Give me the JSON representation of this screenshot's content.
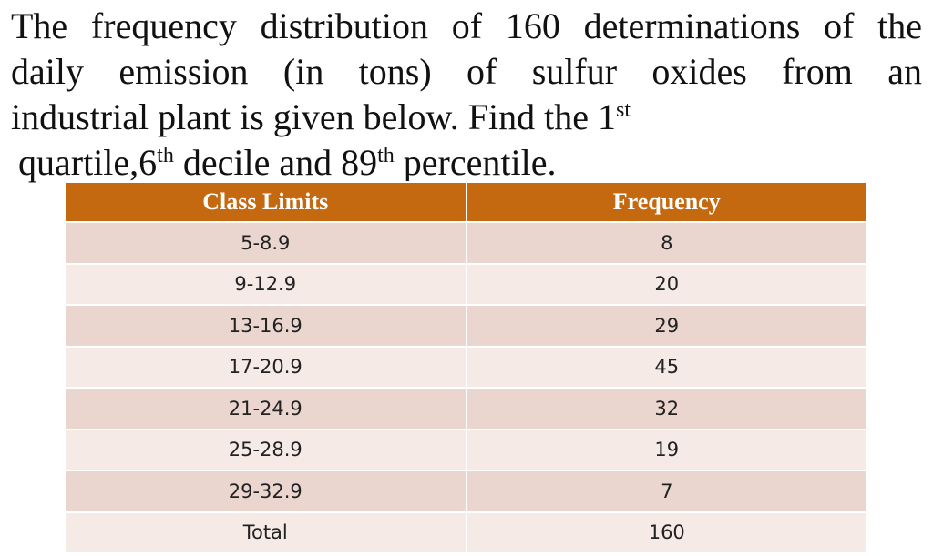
{
  "question": {
    "lines": [
      [
        {
          "text": "The frequency distribution of 160 determinations of the"
        }
      ],
      [
        {
          "text": "daily emission (in tons) of sulfur oxides from an"
        }
      ],
      [
        {
          "text": "industrial plant is given below. Find the 1"
        },
        {
          "sup": "st"
        }
      ],
      [
        {
          "text": "quartile,6"
        },
        {
          "sup": "th"
        },
        {
          "text": " decile and 89"
        },
        {
          "sup": "th"
        },
        {
          "text": " percentile."
        }
      ]
    ]
  },
  "table": {
    "header": [
      "Class Limits",
      "Frequency"
    ],
    "rows": [
      [
        "5-8.9",
        8
      ],
      [
        "9-12.9",
        20
      ],
      [
        "13-16.9",
        29
      ],
      [
        "17-20.9",
        45
      ],
      [
        "21-24.9",
        32
      ],
      [
        "25-28.9",
        19
      ],
      [
        "29-32.9",
        7
      ],
      [
        "Total",
        160
      ]
    ]
  }
}
